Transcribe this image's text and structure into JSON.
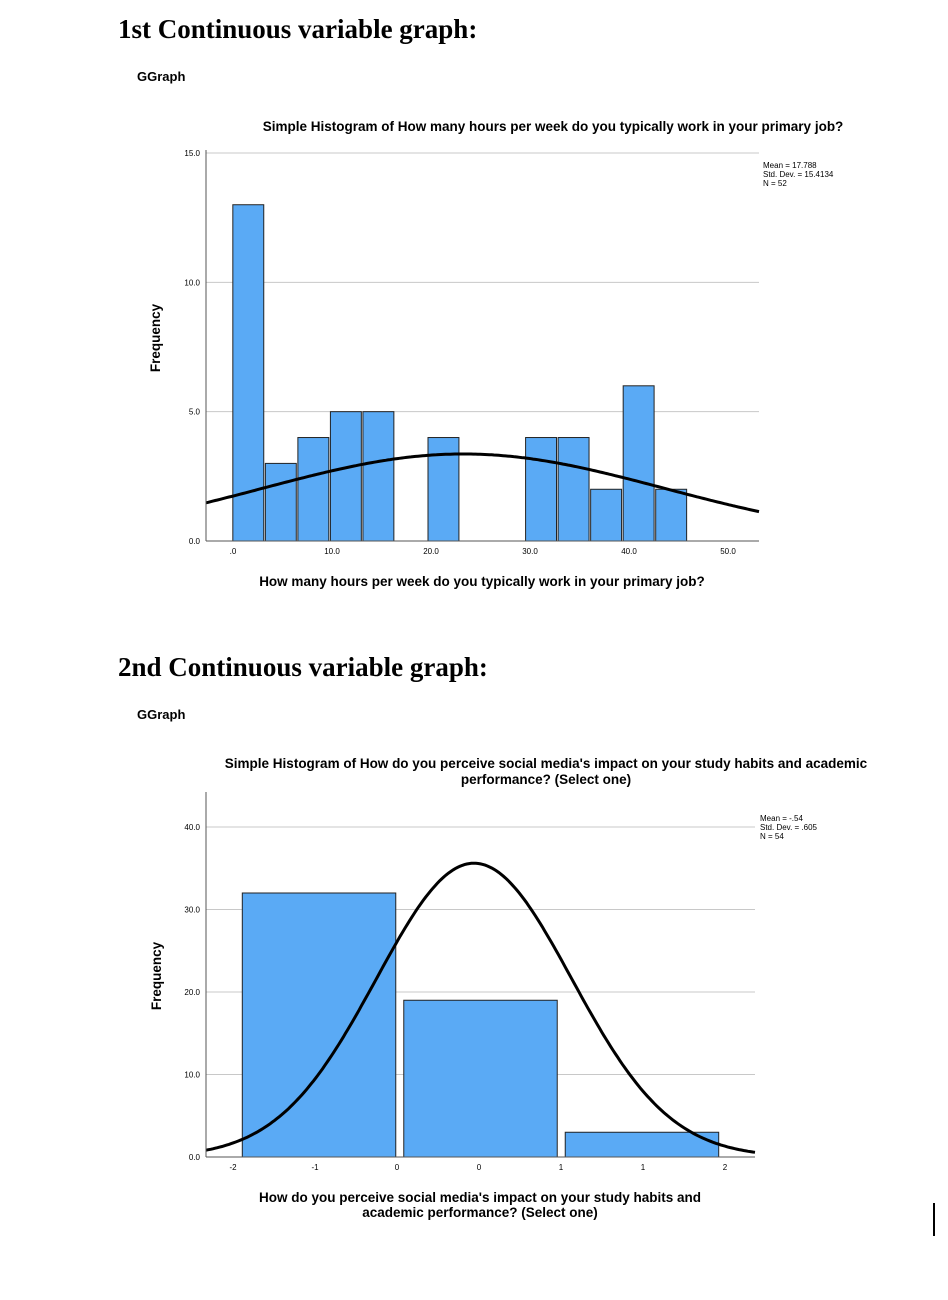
{
  "headings": {
    "first": "1st Continuous variable graph:",
    "second": "2nd Continuous variable graph:"
  },
  "ggraph_label": "GGraph",
  "colors": {
    "bar_fill": "#5aaaf5",
    "bar_stroke": "#222222",
    "curve": "#000000",
    "grid": "#c8c8c8"
  },
  "chart_data": [
    {
      "type": "bar",
      "subtype": "histogram",
      "title": "Simple Histogram of How many hours per week do you typically work in your primary job?",
      "xlabel": "How many hours per week do you typically work in your primary job?",
      "ylabel": "Frequency",
      "bin_width": 2.5,
      "bins": [
        {
          "start": 0,
          "end": 2.5,
          "count": 13
        },
        {
          "start": 2.5,
          "end": 5,
          "count": 3
        },
        {
          "start": 5,
          "end": 7.5,
          "count": 4
        },
        {
          "start": 7.5,
          "end": 10,
          "count": 5
        },
        {
          "start": 10,
          "end": 12.5,
          "count": 5
        },
        {
          "start": 15,
          "end": 17.5,
          "count": 4
        },
        {
          "start": 22.5,
          "end": 25,
          "count": 4
        },
        {
          "start": 25,
          "end": 27.5,
          "count": 4
        },
        {
          "start": 27.5,
          "end": 30,
          "count": 2
        },
        {
          "start": 30,
          "end": 32.5,
          "count": 6
        },
        {
          "start": 32.5,
          "end": 35,
          "count": 2
        }
      ],
      "xlim": [
        -2,
        40.5
      ],
      "ylim": [
        0,
        15
      ],
      "x_ticks": [
        ".0",
        "10.0",
        "20.0",
        "30.0",
        "40.0",
        "50.0"
      ],
      "y_ticks": [
        "0.0",
        "5.0",
        "10.0",
        "15.0"
      ],
      "y_tick_values": [
        0,
        5,
        10,
        15
      ],
      "stats": [
        "Mean = 17.788",
        "Std. Dev. = 15.4134",
        "N = 52"
      ],
      "normal_curve": {
        "mean": 17.788,
        "sd": 15.4134,
        "n": 52
      },
      "grid": true
    },
    {
      "type": "bar",
      "subtype": "histogram",
      "title": "Simple Histogram of How do you perceive social media's impact on your study habits and academic performance? (Select one)",
      "title_lines": [
        "Simple Histogram of How do you perceive social media's impact on your study habits and academic",
        "performance? (Select one)"
      ],
      "xlabel_lines": [
        "How do you perceive social media's impact on your study habits and",
        "academic performance? (Select one)"
      ],
      "ylabel": "Frequency",
      "bins": [
        {
          "start": -2,
          "end": -1,
          "count": 32
        },
        {
          "start": -1,
          "end": 0,
          "count": 19
        },
        {
          "start": 0,
          "end": 1,
          "count": 3
        }
      ],
      "xlim": [
        -2.2,
        1.2
      ],
      "ylim": [
        0,
        40
      ],
      "x_ticks": [
        "-2",
        "-1",
        "0",
        "0",
        "1",
        "1",
        "2"
      ],
      "y_ticks": [
        "0.0",
        "10.0",
        "20.0",
        "30.0",
        "40.0"
      ],
      "y_tick_values": [
        0,
        10,
        20,
        30,
        40
      ],
      "stats": [
        "Mean = -.54",
        "Std. Dev. = .605",
        "N = 54"
      ],
      "normal_curve": {
        "mean": -0.54,
        "sd": 0.605,
        "n": 54
      },
      "grid": true
    }
  ]
}
